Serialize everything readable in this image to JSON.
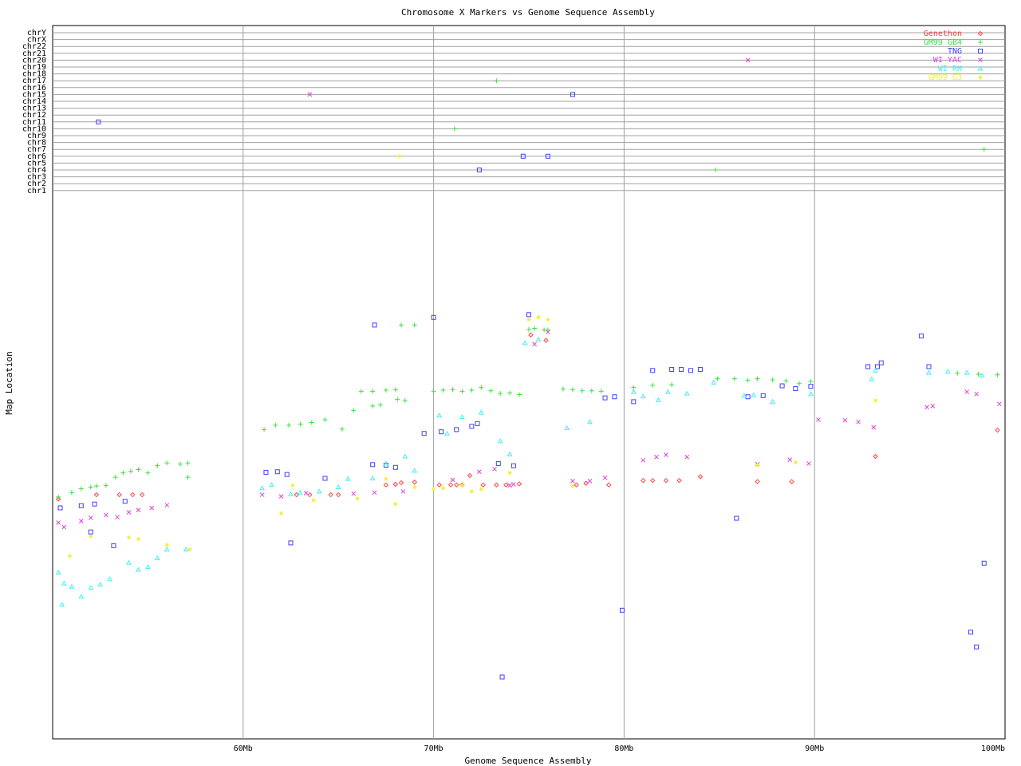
{
  "chart_data": {
    "type": "scatter",
    "title": "Chromosome X Markers vs Genome Sequence Assembly",
    "xlabel": "Genome Sequence Assembly",
    "ylabel": "Map Location",
    "xlim": [
      50,
      100
    ],
    "x_ticks": [
      {
        "value": 60,
        "label": "60Mb"
      },
      {
        "value": 70,
        "label": "70Mb"
      },
      {
        "value": 80,
        "label": "80Mb"
      },
      {
        "value": 90,
        "label": "90Mb"
      },
      {
        "value": 100,
        "label": "100Mb"
      }
    ],
    "y_upper_rows": [
      "chrY",
      "chrX",
      "chr22",
      "chr21",
      "chr20",
      "chr19",
      "chr18",
      "chr17",
      "chr16",
      "chr15",
      "chr14",
      "chr13",
      "chr12",
      "chr11",
      "chr10",
      "chr9",
      "chr8",
      "chr7",
      "chr6",
      "chr5",
      "chr4",
      "chr3",
      "chr2",
      "chr1"
    ],
    "y_lower_range": [
      0,
      100
    ],
    "grid": true,
    "legend_position": "top-right",
    "series": [
      {
        "name": "Genethon",
        "color": "#ff4040",
        "marker": "diamond",
        "other_chr": [],
        "points": [
          [
            50.3,
            43.8
          ],
          [
            53.5,
            44.6
          ],
          [
            54.2,
            44.6
          ],
          [
            54.7,
            44.6
          ],
          [
            52.3,
            44.6
          ],
          [
            62.8,
            44.6
          ],
          [
            63.5,
            44.6
          ],
          [
            64.6,
            44.6
          ],
          [
            65,
            44.6
          ],
          [
            68,
            46.5
          ],
          [
            68.3,
            46.8
          ],
          [
            69,
            46.9
          ],
          [
            70.3,
            46.4
          ],
          [
            70.9,
            46.4
          ],
          [
            71.2,
            46.4
          ],
          [
            71.5,
            46.4
          ],
          [
            71.9,
            48.1
          ],
          [
            72.6,
            46.4
          ],
          [
            73.3,
            46.4
          ],
          [
            73.8,
            46.4
          ],
          [
            75.1,
            73.8
          ],
          [
            75.9,
            72.8
          ],
          [
            78,
            46.7
          ],
          [
            79.2,
            46.4
          ],
          [
            81,
            47.2
          ],
          [
            81.5,
            47.2
          ],
          [
            82.2,
            47.2
          ],
          [
            82.9,
            47.2
          ],
          [
            84,
            47.9
          ],
          [
            87,
            47
          ],
          [
            88.8,
            47
          ],
          [
            93.2,
            51.6
          ],
          [
            99.6,
            56.4
          ],
          [
            74.5,
            46.6
          ],
          [
            67.5,
            46.4
          ],
          [
            77.5,
            46.4
          ]
        ]
      },
      {
        "name": "GM99 GB4",
        "color": "#40e040",
        "marker": "plus",
        "other_chr": [
          [
            "chr17",
            73.3
          ],
          [
            "chr10",
            71.1
          ],
          [
            "chr7",
            98.9
          ],
          [
            "chr4",
            84.8
          ]
        ],
        "points": [
          [
            50.3,
            44.2
          ],
          [
            51,
            45
          ],
          [
            51.5,
            45.7
          ],
          [
            52,
            46
          ],
          [
            52.3,
            46.2
          ],
          [
            52.8,
            46.3
          ],
          [
            53.3,
            47.8
          ],
          [
            53.7,
            48.6
          ],
          [
            54.1,
            48.9
          ],
          [
            54.5,
            49.2
          ],
          [
            55,
            48.6
          ],
          [
            55.5,
            49.9
          ],
          [
            56,
            50.4
          ],
          [
            56.7,
            50.2
          ],
          [
            57.1,
            50.4
          ],
          [
            57.1,
            47.8
          ],
          [
            61.1,
            56.5
          ],
          [
            61.7,
            57.3
          ],
          [
            62.4,
            57.3
          ],
          [
            63,
            57.5
          ],
          [
            63.6,
            57.8
          ],
          [
            64.3,
            58.3
          ],
          [
            65.2,
            56.6
          ],
          [
            65.8,
            60
          ],
          [
            66.8,
            60.8
          ],
          [
            67.2,
            61
          ],
          [
            68.1,
            62
          ],
          [
            68.5,
            61.8
          ],
          [
            66.2,
            63.5
          ],
          [
            66.8,
            63.5
          ],
          [
            67.5,
            63.7
          ],
          [
            68,
            63.8
          ],
          [
            68.3,
            75.6
          ],
          [
            69,
            75.6
          ],
          [
            70,
            63.5
          ],
          [
            70.5,
            63.7
          ],
          [
            71,
            63.8
          ],
          [
            71.5,
            63.5
          ],
          [
            72,
            63.7
          ],
          [
            72.5,
            64.2
          ],
          [
            73,
            63.6
          ],
          [
            73.5,
            63.1
          ],
          [
            74,
            63.2
          ],
          [
            74.5,
            62.9
          ],
          [
            75,
            74.8
          ],
          [
            75.3,
            75
          ],
          [
            75.8,
            74.7
          ],
          [
            76,
            74.7
          ],
          [
            76.8,
            63.9
          ],
          [
            77.3,
            63.8
          ],
          [
            77.8,
            63.6
          ],
          [
            78.3,
            63.6
          ],
          [
            78.8,
            63.5
          ],
          [
            80.5,
            64.2
          ],
          [
            81.5,
            64.6
          ],
          [
            82.5,
            64.7
          ],
          [
            84.9,
            65.8
          ],
          [
            85.8,
            65.8
          ],
          [
            86.5,
            65.5
          ],
          [
            87,
            65.8
          ],
          [
            87.8,
            65.6
          ],
          [
            88.5,
            65.4
          ],
          [
            89.2,
            64.9
          ],
          [
            89.8,
            65.3
          ],
          [
            98.6,
            66.6
          ],
          [
            99.6,
            66.5
          ],
          [
            97.5,
            66.8
          ]
        ]
      },
      {
        "name": "TNG",
        "color": "#4040ff",
        "marker": "square",
        "other_chr": [
          [
            "chr15",
            77.3
          ],
          [
            "chr11",
            52.4
          ],
          [
            "chr6",
            74.7
          ],
          [
            "chr6",
            76
          ],
          [
            "chr4",
            72.4
          ]
        ],
        "points": [
          [
            50.4,
            42.2
          ],
          [
            51.5,
            42.6
          ],
          [
            52.2,
            42.9
          ],
          [
            53.8,
            43.4
          ],
          [
            52,
            37.8
          ],
          [
            53.2,
            35.3
          ],
          [
            61.2,
            48.7
          ],
          [
            61.8,
            48.8
          ],
          [
            62.3,
            48.3
          ],
          [
            64.3,
            47.6
          ],
          [
            62.5,
            35.8
          ],
          [
            66.9,
            75.6
          ],
          [
            66.8,
            50.1
          ],
          [
            67.5,
            50
          ],
          [
            68,
            49.6
          ],
          [
            69.5,
            55.8
          ],
          [
            70.4,
            56.1
          ],
          [
            71.2,
            56.5
          ],
          [
            72,
            57.1
          ],
          [
            72.3,
            57.6
          ],
          [
            75,
            77.5
          ],
          [
            70,
            77
          ],
          [
            74.2,
            49.9
          ],
          [
            73.4,
            50.3
          ],
          [
            79,
            62.3
          ],
          [
            79.5,
            62.5
          ],
          [
            80.5,
            61.6
          ],
          [
            81.5,
            67.3
          ],
          [
            82.5,
            67.5
          ],
          [
            83,
            67.5
          ],
          [
            83.5,
            67.3
          ],
          [
            84,
            67.5
          ],
          [
            86.5,
            62.5
          ],
          [
            87.3,
            62.7
          ],
          [
            88.3,
            64.5
          ],
          [
            89,
            64
          ],
          [
            89.8,
            64.4
          ],
          [
            92.8,
            68
          ],
          [
            93.3,
            68
          ],
          [
            93.5,
            68.7
          ],
          [
            96,
            68
          ],
          [
            95.6,
            73.6
          ],
          [
            85.9,
            40.3
          ],
          [
            79.9,
            23.5
          ],
          [
            98.9,
            32.1
          ],
          [
            98.2,
            19.5
          ],
          [
            98.5,
            16.8
          ],
          [
            73.6,
            11.3
          ]
        ]
      },
      {
        "name": "WI YAC",
        "color": "#e040e0",
        "marker": "cross",
        "other_chr": [
          [
            "chr20",
            86.5
          ],
          [
            "chr15",
            63.5
          ]
        ],
        "points": [
          [
            50.3,
            39.5
          ],
          [
            50.6,
            38.7
          ],
          [
            51.5,
            39.8
          ],
          [
            52,
            40.4
          ],
          [
            52.8,
            40.9
          ],
          [
            53.4,
            40.5
          ],
          [
            54,
            41.4
          ],
          [
            54.5,
            41.8
          ],
          [
            55.2,
            42.2
          ],
          [
            56,
            42.7
          ],
          [
            61,
            44.6
          ],
          [
            62,
            44.3
          ],
          [
            63.3,
            44.9
          ],
          [
            65.8,
            44.8
          ],
          [
            66.9,
            45
          ],
          [
            68.4,
            45.2
          ],
          [
            71,
            47.3
          ],
          [
            72.4,
            48.8
          ],
          [
            73.2,
            49.3
          ],
          [
            74,
            46.3
          ],
          [
            74.2,
            46.5
          ],
          [
            75.3,
            72.1
          ],
          [
            76,
            74.3
          ],
          [
            77.3,
            47.1
          ],
          [
            78.2,
            47.1
          ],
          [
            79,
            47.7
          ],
          [
            81,
            50.9
          ],
          [
            81.7,
            51.5
          ],
          [
            82.2,
            51.9
          ],
          [
            83.3,
            51.5
          ],
          [
            87,
            50.2
          ],
          [
            88.7,
            51
          ],
          [
            89.7,
            50.3
          ],
          [
            90.2,
            58.3
          ],
          [
            91.6,
            58.2
          ],
          [
            92.3,
            57.9
          ],
          [
            93.1,
            56.9
          ],
          [
            95.9,
            60.6
          ],
          [
            96.2,
            60.8
          ],
          [
            98,
            63.4
          ],
          [
            98.5,
            63
          ],
          [
            99.7,
            61.2
          ]
        ]
      },
      {
        "name": "WI RH",
        "color": "#40f0f0",
        "marker": "triangle",
        "other_chr": [],
        "points": [
          [
            50.3,
            30.4
          ],
          [
            50.6,
            28.4
          ],
          [
            51,
            27.8
          ],
          [
            51.5,
            26
          ],
          [
            52,
            27.6
          ],
          [
            52.5,
            28.2
          ],
          [
            53,
            29.2
          ],
          [
            54,
            32.2
          ],
          [
            54.5,
            30.9
          ],
          [
            55,
            31.4
          ],
          [
            55.5,
            33
          ],
          [
            56,
            34.6
          ],
          [
            57,
            34.6
          ],
          [
            61,
            45.8
          ],
          [
            61.5,
            46.4
          ],
          [
            62.5,
            44.7
          ],
          [
            63,
            45
          ],
          [
            64,
            45.2
          ],
          [
            65,
            46
          ],
          [
            66.8,
            47.6
          ],
          [
            67.5,
            50.3
          ],
          [
            68.5,
            51.6
          ],
          [
            70.3,
            59.1
          ],
          [
            70.7,
            55.8
          ],
          [
            71.5,
            58.8
          ],
          [
            72.5,
            59.6
          ],
          [
            73.5,
            54.4
          ],
          [
            74,
            52
          ],
          [
            74.8,
            72.3
          ],
          [
            75.5,
            73
          ],
          [
            77,
            56.8
          ],
          [
            78.2,
            57.9
          ],
          [
            80.5,
            63.4
          ],
          [
            81,
            62.6
          ],
          [
            81.8,
            61.9
          ],
          [
            82.3,
            63.4
          ],
          [
            83.3,
            63.1
          ],
          [
            84.7,
            65.1
          ],
          [
            86.3,
            62.7
          ],
          [
            86.8,
            62.8
          ],
          [
            87.8,
            61.6
          ],
          [
            89.8,
            63
          ],
          [
            93,
            65.7
          ],
          [
            93.2,
            67.3
          ],
          [
            96,
            66.9
          ],
          [
            97,
            67.1
          ],
          [
            98,
            66.9
          ],
          [
            98.8,
            66.4
          ],
          [
            50.5,
            24.5
          ],
          [
            65.5,
            47.5
          ],
          [
            69,
            49
          ]
        ]
      },
      {
        "name": "GM99 G3",
        "color": "#f0f040",
        "marker": "star",
        "other_chr": [
          [
            "chr6",
            68.2
          ]
        ],
        "points": [
          [
            50.9,
            33.4
          ],
          [
            52,
            37
          ],
          [
            54,
            36.8
          ],
          [
            54.5,
            36.5
          ],
          [
            56,
            35.4
          ],
          [
            57.2,
            34.6
          ],
          [
            66,
            43.9
          ],
          [
            67.5,
            47.5
          ],
          [
            62.6,
            46.3
          ],
          [
            63.7,
            43.6
          ],
          [
            69,
            46
          ],
          [
            70,
            45.6
          ],
          [
            70.5,
            45.8
          ],
          [
            71.5,
            46.3
          ],
          [
            72,
            45.2
          ],
          [
            72.5,
            45.6
          ],
          [
            75,
            76.6
          ],
          [
            75.5,
            77
          ],
          [
            76,
            76.6
          ],
          [
            74,
            48.6
          ],
          [
            77.3,
            46.2
          ],
          [
            87,
            50
          ],
          [
            89,
            50.5
          ],
          [
            93.2,
            61.8
          ],
          [
            62,
            41.2
          ],
          [
            68,
            42.9
          ]
        ]
      }
    ]
  }
}
